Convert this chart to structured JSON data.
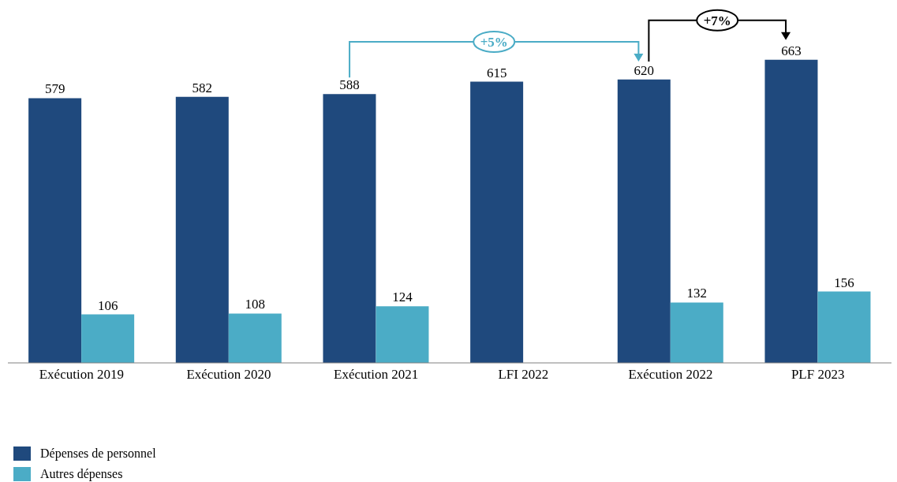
{
  "chart_data": {
    "type": "bar",
    "categories": [
      "Exécution 2019",
      "Exécution 2020",
      "Exécution 2021",
      "LFI 2022",
      "Exécution 2022",
      "PLF 2023"
    ],
    "series": [
      {
        "name": "Dépenses de personnel",
        "color": "#1f497d",
        "values": [
          579,
          582,
          588,
          615,
          620,
          663
        ]
      },
      {
        "name": "Autres dépenses",
        "color": "#4bacc6",
        "values": [
          106,
          108,
          124,
          null,
          132,
          156
        ]
      }
    ],
    "data_labels": true,
    "legend": "bottom left",
    "annotations": [
      "+5%",
      "+7%"
    ]
  }
}
